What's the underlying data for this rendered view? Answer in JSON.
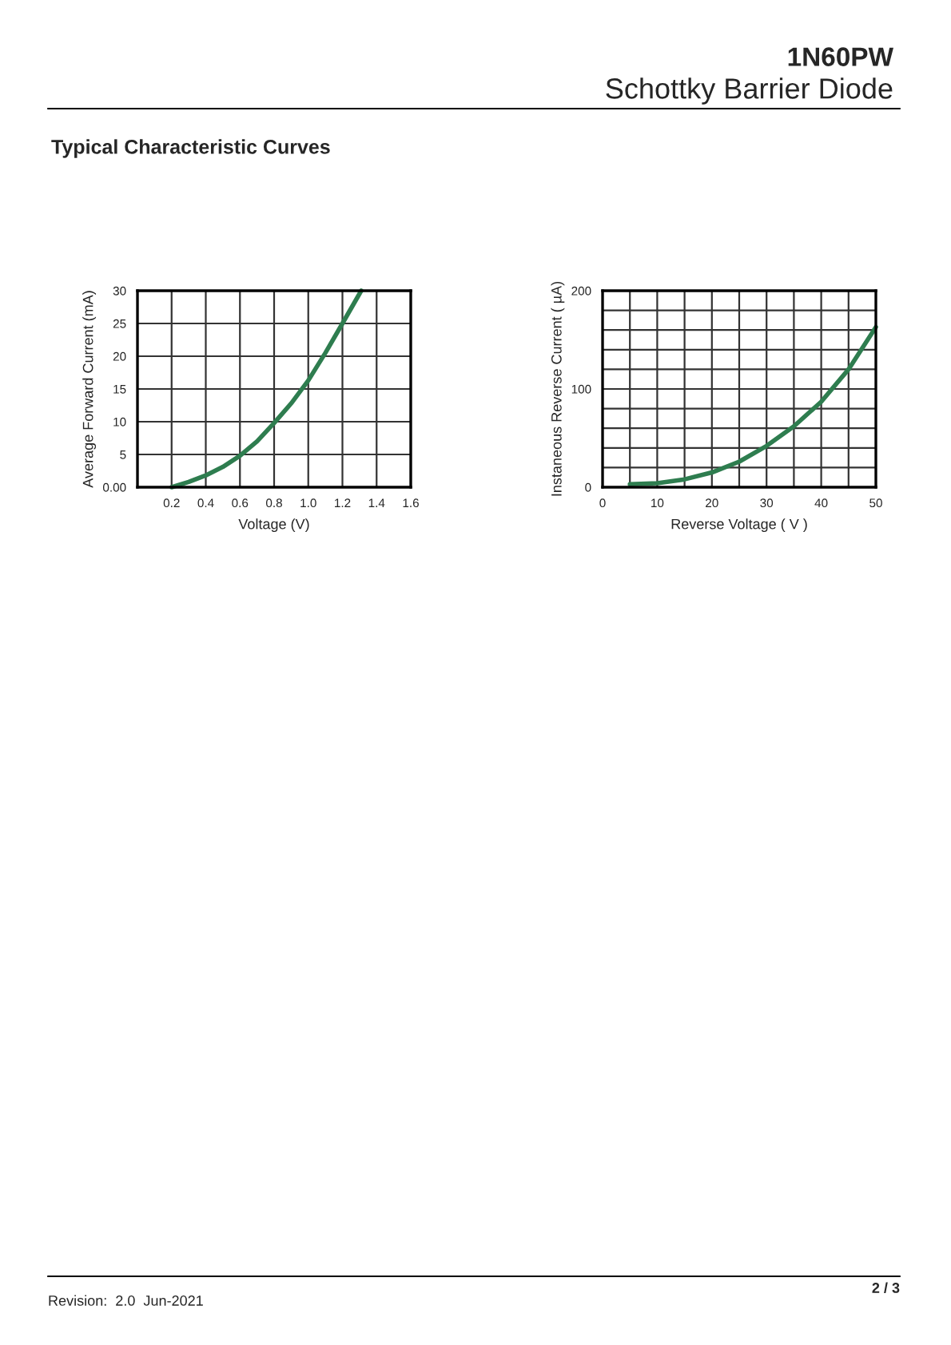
{
  "chart_data": [
    {
      "type": "line",
      "xlabel": "Voltage (V)",
      "ylabel": "Average Forward Current (mA)",
      "annotations": [
        "1N60PW",
        "Schottky Barrier Diode",
        "Typical Characteristic Curves",
        "Revision:  2.0  Jun-2021",
        "2 / 3"
      ],
      "series": [
        {
          "color": "#2e7d4f",
          "x": [
            0.2,
            0.3,
            0.4,
            0.5,
            0.6,
            0.7,
            0.8,
            0.9,
            1.0,
            1.1,
            1.2,
            1.31
          ],
          "values": [
            0,
            0.8,
            1.8,
            3.1,
            4.8,
            7.0,
            9.8,
            12.8,
            16.3,
            20.5,
            25,
            30
          ]
        }
      ],
      "xlim": [
        0,
        1.6
      ],
      "xticks": [
        {
          "value": 0,
          "label": null
        },
        0.2,
        0.4,
        0.6,
        0.8,
        {
          "value": 1.0,
          "label": "1.0"
        },
        1.2,
        1.4,
        1.6
      ],
      "ylim": [
        0,
        30
      ],
      "yticks": [
        {
          "value": 0,
          "label": "0.00"
        },
        5,
        10,
        15,
        20,
        25,
        30
      ],
      "grid": true,
      "line_style": "solid",
      "marker": "none"
    },
    {
      "type": "line",
      "xlabel": "Reverse Voltage ( V )",
      "ylabel": "Instaneous Reverse Current ( µA)",
      "series": [
        {
          "color": "#2e7d4f",
          "x": [
            5,
            10,
            15,
            20,
            25,
            30,
            35,
            40,
            45,
            50
          ],
          "values": [
            3,
            4,
            8,
            15,
            26,
            42,
            62,
            87,
            120,
            163
          ]
        }
      ],
      "xlim": [
        0,
        50
      ],
      "xticks": [
        0,
        {
          "value": 5,
          "label": null
        },
        10,
        {
          "value": 15,
          "label": null
        },
        20,
        {
          "value": 25,
          "label": null
        },
        30,
        {
          "value": 35,
          "label": null
        },
        40,
        {
          "value": 45,
          "label": null
        },
        50
      ],
      "ylim": [
        0,
        200
      ],
      "yticks": [
        0,
        {
          "value": 20,
          "label": null
        },
        {
          "value": 40,
          "label": null
        },
        {
          "value": 60,
          "label": null
        },
        {
          "value": 80,
          "label": null
        },
        100,
        {
          "value": 120,
          "label": null
        },
        {
          "value": 140,
          "label": null
        },
        {
          "value": 160,
          "label": null
        },
        {
          "value": 180,
          "label": null
        },
        200
      ],
      "grid": true,
      "line_style": "solid",
      "marker": "none"
    }
  ]
}
